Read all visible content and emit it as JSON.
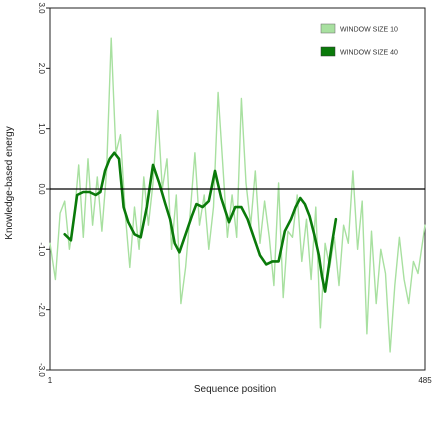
{
  "chart_data": {
    "type": "line",
    "title": "",
    "xlabel": "Sequence position",
    "ylabel": "Knowledge-based energy",
    "xlim": [
      1,
      485
    ],
    "ylim": [
      -3.0,
      3.0
    ],
    "x_tick_labels": [
      "1",
      "485"
    ],
    "y_tick_labels": [
      "3.0",
      "2.0",
      "1.0",
      "0.0",
      "-1.0",
      "-2.0",
      "-3.0"
    ],
    "zero_line": true,
    "grid": false,
    "legend_position": "top-right",
    "colors": {
      "window_10": "#a8e0a0",
      "window_40": "#0a7a0a",
      "frame": "#222222",
      "zero": "#000000"
    },
    "series": [
      {
        "name": "WINDOW SIZE 10",
        "points": [
          [
            1,
            -0.9
          ],
          [
            8,
            -1.5
          ],
          [
            14,
            -0.4
          ],
          [
            20,
            -0.2
          ],
          [
            26,
            -1.0
          ],
          [
            32,
            -0.5
          ],
          [
            38,
            0.4
          ],
          [
            44,
            -0.8
          ],
          [
            50,
            0.5
          ],
          [
            56,
            -0.6
          ],
          [
            62,
            0.2
          ],
          [
            68,
            -0.7
          ],
          [
            74,
            0.3
          ],
          [
            80,
            2.5
          ],
          [
            86,
            0.6
          ],
          [
            92,
            0.9
          ],
          [
            98,
            -0.4
          ],
          [
            104,
            -1.3
          ],
          [
            110,
            -0.3
          ],
          [
            116,
            -1.0
          ],
          [
            122,
            0.2
          ],
          [
            128,
            -0.6
          ],
          [
            134,
            0.1
          ],
          [
            140,
            1.3
          ],
          [
            146,
            0.0
          ],
          [
            152,
            0.5
          ],
          [
            158,
            -1.0
          ],
          [
            164,
            -0.1
          ],
          [
            170,
            -1.9
          ],
          [
            176,
            -1.3
          ],
          [
            182,
            -0.4
          ],
          [
            188,
            0.6
          ],
          [
            194,
            -0.6
          ],
          [
            200,
            -0.1
          ],
          [
            206,
            -1.0
          ],
          [
            212,
            -0.3
          ],
          [
            218,
            1.6
          ],
          [
            224,
            0.4
          ],
          [
            230,
            -0.8
          ],
          [
            236,
            -0.1
          ],
          [
            242,
            -0.8
          ],
          [
            248,
            1.5
          ],
          [
            254,
            0.1
          ],
          [
            260,
            -0.6
          ],
          [
            266,
            0.3
          ],
          [
            272,
            -0.9
          ],
          [
            278,
            -0.2
          ],
          [
            284,
            -0.8
          ],
          [
            290,
            -1.6
          ],
          [
            296,
            0.1
          ],
          [
            302,
            -1.8
          ],
          [
            308,
            -0.7
          ],
          [
            314,
            -0.8
          ],
          [
            320,
            -0.1
          ],
          [
            326,
            -1.2
          ],
          [
            332,
            -0.5
          ],
          [
            338,
            -1.5
          ],
          [
            344,
            -0.3
          ],
          [
            350,
            -2.3
          ],
          [
            356,
            -0.9
          ],
          [
            362,
            -1.3
          ],
          [
            368,
            -0.8
          ],
          [
            374,
            -1.6
          ],
          [
            380,
            -0.6
          ],
          [
            386,
            -0.9
          ],
          [
            392,
            0.3
          ],
          [
            398,
            -1.0
          ],
          [
            404,
            -0.2
          ],
          [
            410,
            -2.4
          ],
          [
            416,
            -0.7
          ],
          [
            422,
            -1.9
          ],
          [
            428,
            -1.0
          ],
          [
            434,
            -1.4
          ],
          [
            440,
            -2.7
          ],
          [
            446,
            -1.6
          ],
          [
            452,
            -0.8
          ],
          [
            458,
            -1.5
          ],
          [
            464,
            -1.9
          ],
          [
            470,
            -1.2
          ],
          [
            476,
            -1.4
          ],
          [
            485,
            -0.6
          ]
        ]
      },
      {
        "name": "WINDOW SIZE 40",
        "points": [
          [
            20,
            -0.75
          ],
          [
            28,
            -0.85
          ],
          [
            36,
            -0.1
          ],
          [
            44,
            -0.05
          ],
          [
            52,
            -0.05
          ],
          [
            60,
            -0.1
          ],
          [
            66,
            -0.05
          ],
          [
            72,
            0.3
          ],
          [
            78,
            0.5
          ],
          [
            84,
            0.6
          ],
          [
            90,
            0.5
          ],
          [
            96,
            -0.3
          ],
          [
            102,
            -0.55
          ],
          [
            110,
            -0.75
          ],
          [
            118,
            -0.8
          ],
          [
            126,
            -0.3
          ],
          [
            134,
            0.4
          ],
          [
            142,
            0.1
          ],
          [
            150,
            -0.25
          ],
          [
            156,
            -0.5
          ],
          [
            162,
            -0.9
          ],
          [
            168,
            -1.05
          ],
          [
            176,
            -0.75
          ],
          [
            184,
            -0.45
          ],
          [
            190,
            -0.25
          ],
          [
            198,
            -0.3
          ],
          [
            206,
            -0.2
          ],
          [
            214,
            0.3
          ],
          [
            222,
            -0.15
          ],
          [
            232,
            -0.55
          ],
          [
            240,
            -0.3
          ],
          [
            248,
            -0.3
          ],
          [
            256,
            -0.5
          ],
          [
            264,
            -0.8
          ],
          [
            272,
            -1.1
          ],
          [
            280,
            -1.25
          ],
          [
            288,
            -1.2
          ],
          [
            296,
            -1.2
          ],
          [
            304,
            -0.7
          ],
          [
            312,
            -0.5
          ],
          [
            318,
            -0.3
          ],
          [
            324,
            -0.15
          ],
          [
            330,
            -0.25
          ],
          [
            336,
            -0.45
          ],
          [
            342,
            -0.75
          ],
          [
            348,
            -1.1
          ],
          [
            352,
            -1.45
          ],
          [
            356,
            -1.7
          ],
          [
            360,
            -1.35
          ],
          [
            365,
            -0.9
          ],
          [
            370,
            -0.5
          ]
        ]
      }
    ]
  }
}
